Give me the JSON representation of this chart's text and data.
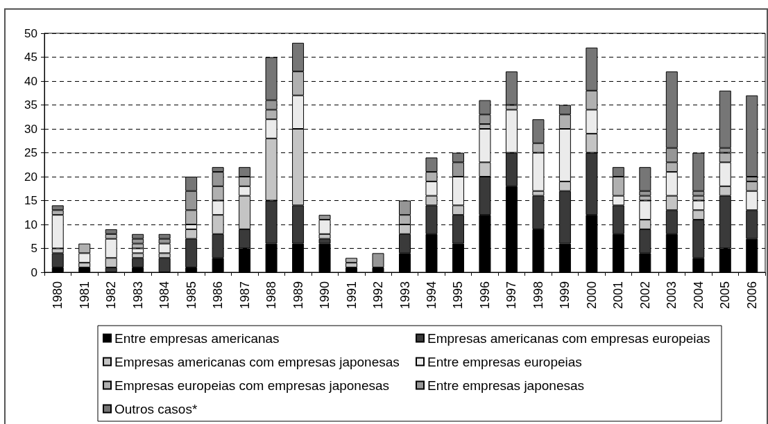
{
  "chart_data": {
    "type": "bar",
    "stacked": true,
    "categories": [
      "1980",
      "1981",
      "1982",
      "1983",
      "1984",
      "1985",
      "1986",
      "1987",
      "1988",
      "1989",
      "1990",
      "1991",
      "1992",
      "1993",
      "1994",
      "1995",
      "1996",
      "1997",
      "1998",
      "1999",
      "2000",
      "2001",
      "2002",
      "2003",
      "2004",
      "2005",
      "2006"
    ],
    "series": [
      {
        "name": "Entre empresas americanas",
        "color": "#000000",
        "values": [
          1,
          1,
          0,
          1,
          0,
          1,
          3,
          5,
          6,
          6,
          6,
          1,
          1,
          4,
          8,
          6,
          12,
          18,
          9,
          6,
          12,
          8,
          4,
          8,
          3,
          5,
          7
        ]
      },
      {
        "name": "Empresas americanas com empresas europeias",
        "color": "#3a3a3a",
        "values": [
          3,
          0,
          1,
          2,
          3,
          6,
          5,
          4,
          9,
          8,
          1,
          0,
          0,
          4,
          6,
          6,
          8,
          7,
          7,
          11,
          13,
          6,
          5,
          5,
          8,
          11,
          6
        ]
      },
      {
        "name": "Empresas americanas com empresas japonesas",
        "color": "#c4c4c4",
        "values": [
          1,
          1,
          2,
          1,
          1,
          2,
          4,
          7,
          13,
          16,
          1,
          1,
          0,
          2,
          2,
          2,
          3,
          0,
          1,
          2,
          4,
          0,
          2,
          3,
          2,
          2,
          0
        ]
      },
      {
        "name": "Entre empresas europeias",
        "color": "#ebebeb",
        "values": [
          7,
          2,
          4,
          1,
          2,
          1,
          3,
          2,
          4,
          7,
          3,
          0,
          0,
          0,
          3,
          6,
          7,
          9,
          8,
          11,
          5,
          2,
          4,
          5,
          2,
          5,
          4
        ]
      },
      {
        "name": "Empresas europeias com empresas japonesas",
        "color": "#b0b0b0",
        "values": [
          1,
          2,
          1,
          1,
          0,
          3,
          3,
          2,
          2,
          5,
          0,
          1,
          0,
          2,
          2,
          0,
          1,
          1,
          2,
          3,
          4,
          4,
          1,
          2,
          1,
          2,
          2
        ]
      },
      {
        "name": "Entre empresas japonesas",
        "color": "#969696",
        "values": [
          0,
          0,
          0,
          1,
          1,
          4,
          3,
          0,
          2,
          0,
          1,
          0,
          3,
          3,
          0,
          3,
          2,
          0,
          0,
          0,
          0,
          0,
          1,
          3,
          1,
          1,
          1
        ]
      },
      {
        "name": "Outros casos*",
        "color": "#767676",
        "values": [
          1,
          0,
          1,
          1,
          1,
          3,
          1,
          2,
          9,
          6,
          0,
          0,
          0,
          0,
          3,
          2,
          3,
          7,
          5,
          2,
          9,
          2,
          5,
          16,
          8,
          12,
          17
        ]
      }
    ],
    "ylim": [
      0,
      50
    ],
    "yticks": [
      0,
      5,
      10,
      15,
      20,
      25,
      30,
      35,
      40,
      45,
      50
    ],
    "grid": "y",
    "legend": "bottom"
  }
}
